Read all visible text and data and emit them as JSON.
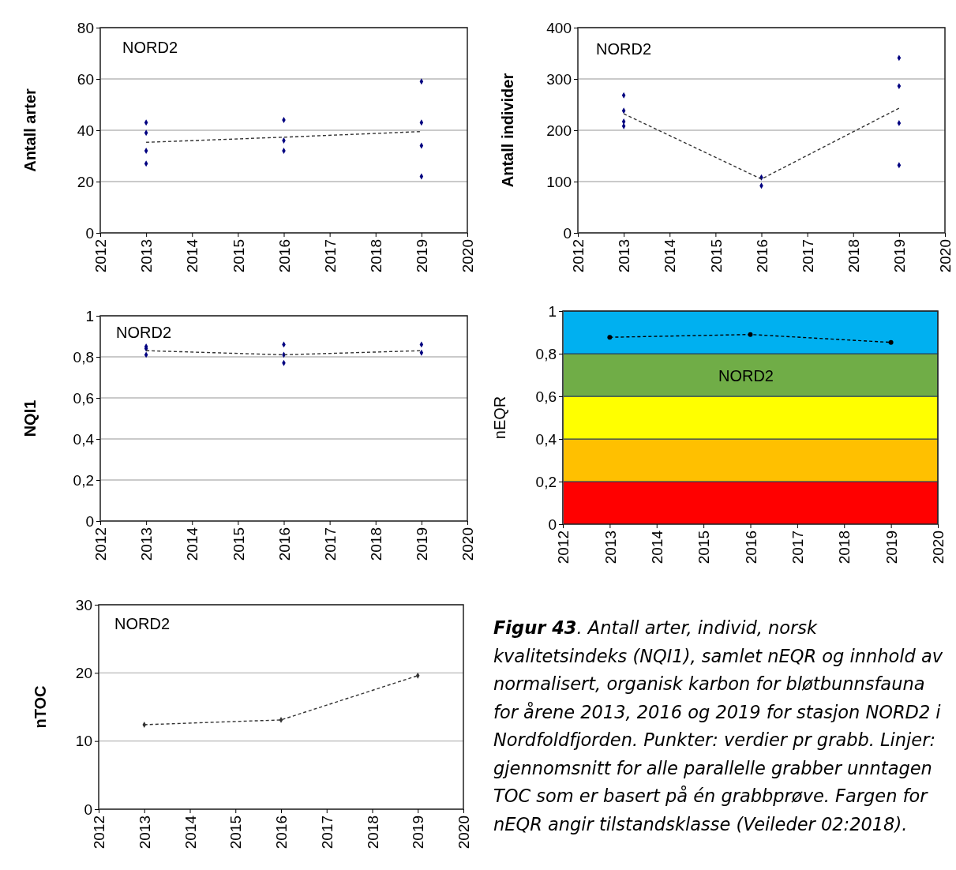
{
  "chart_data": [
    {
      "type": "scatter",
      "ylabel": "Antall arter",
      "xlim": [
        2012,
        2020
      ],
      "xticks": [
        2012,
        2013,
        2014,
        2015,
        2016,
        2017,
        2018,
        2019,
        2020
      ],
      "ylim": [
        0,
        80
      ],
      "yticks": [
        0,
        20,
        40,
        60,
        80
      ],
      "grid": "y",
      "annotations": [
        "NORD2"
      ],
      "series": [
        {
          "color": "#000080",
          "marker": "diamond",
          "x": [
            2013,
            2013,
            2013,
            2013,
            2016,
            2016,
            2016,
            2019,
            2019,
            2019,
            2019
          ],
          "values": [
            43,
            39,
            32,
            27,
            44,
            36,
            32,
            59,
            43,
            34,
            22
          ]
        },
        {
          "type": "line",
          "color": "#333333",
          "marker": "none",
          "line_style": "dashed",
          "x": [
            2013,
            2016,
            2019
          ],
          "values": [
            35.3,
            37.3,
            39.5
          ]
        }
      ]
    },
    {
      "type": "scatter",
      "ylabel": "Antall individer",
      "xlim": [
        2012,
        2020
      ],
      "xticks": [
        2012,
        2013,
        2014,
        2015,
        2016,
        2017,
        2018,
        2019,
        2020
      ],
      "ylim": [
        0,
        400
      ],
      "yticks": [
        0,
        100,
        200,
        300,
        400
      ],
      "grid": "y",
      "annotations": [
        "NORD2"
      ],
      "series": [
        {
          "color": "#000080",
          "marker": "diamond",
          "x": [
            2013,
            2013,
            2013,
            2013,
            2016,
            2016,
            2019,
            2019,
            2019,
            2019
          ],
          "values": [
            268,
            238,
            217,
            208,
            108,
            92,
            341,
            286,
            214,
            132
          ]
        },
        {
          "type": "line",
          "color": "#333333",
          "marker": "none",
          "line_style": "dashed",
          "x": [
            2013,
            2016,
            2019
          ],
          "values": [
            232,
            105,
            243
          ]
        }
      ]
    },
    {
      "type": "scatter",
      "ylabel": "NQI1",
      "xlim": [
        2012,
        2020
      ],
      "xticks": [
        2012,
        2013,
        2014,
        2015,
        2016,
        2017,
        2018,
        2019,
        2020
      ],
      "ylim": [
        0,
        1
      ],
      "yticks": [
        0,
        {
          "value": 0.2,
          "label": "0,2"
        },
        {
          "value": 0.4,
          "label": "0,4"
        },
        {
          "value": 0.6,
          "label": "0,6"
        },
        {
          "value": 0.8,
          "label": "0,8"
        },
        1
      ],
      "grid": "y",
      "annotations": [
        "NORD2"
      ],
      "series": [
        {
          "color": "#000080",
          "marker": "diamond",
          "x": [
            2013,
            2013,
            2013,
            2016,
            2016,
            2016,
            2019,
            2019
          ],
          "values": [
            0.85,
            0.84,
            0.81,
            0.86,
            0.81,
            0.77,
            0.86,
            0.82
          ]
        },
        {
          "type": "line",
          "color": "#333333",
          "marker": "none",
          "line_style": "dashed",
          "x": [
            2013,
            2016,
            2019
          ],
          "values": [
            0.83,
            0.81,
            0.83
          ]
        }
      ]
    },
    {
      "type": "line",
      "ylabel": "nEQR",
      "xlim": [
        2012,
        2020
      ],
      "xticks": [
        2012,
        2013,
        2014,
        2015,
        2016,
        2017,
        2018,
        2019,
        2020
      ],
      "ylim": [
        0,
        1
      ],
      "yticks": [
        0,
        {
          "value": 0.2,
          "label": "0,2"
        },
        {
          "value": 0.4,
          "label": "0,4"
        },
        {
          "value": 0.6,
          "label": "0,6"
        },
        {
          "value": 0.8,
          "label": "0,8"
        },
        1
      ],
      "annotations": [
        "NORD2"
      ],
      "bands": [
        {
          "axis": "y",
          "from": 0,
          "to": 0.2,
          "color": "#ff0000"
        },
        {
          "axis": "y",
          "from": 0.2,
          "to": 0.4,
          "color": "#ffc000"
        },
        {
          "axis": "y",
          "from": 0.4,
          "to": 0.6,
          "color": "#ffff00"
        },
        {
          "axis": "y",
          "from": 0.6,
          "to": 0.8,
          "color": "#70ad47"
        },
        {
          "axis": "y",
          "from": 0.8,
          "to": 1,
          "color": "#00b0f0"
        }
      ],
      "series": [
        {
          "color": "#000000",
          "marker": "circle",
          "line_style": "dashed",
          "x": [
            2013,
            2016,
            2019
          ],
          "values": [
            0.877,
            0.89,
            0.853
          ]
        }
      ]
    },
    {
      "type": "line",
      "ylabel": "nTOC",
      "xlim": [
        2012,
        2020
      ],
      "xticks": [
        2012,
        2013,
        2014,
        2015,
        2016,
        2017,
        2018,
        2019,
        2020
      ],
      "ylim": [
        0,
        30
      ],
      "yticks": [
        0,
        10,
        20,
        30
      ],
      "grid": "y",
      "annotations": [
        "NORD2",
        "Figur 43. Antall arter, individ, norsk kvalitetsindeks (NQI1), samlet nEQR og innhold av normalisert, organisk karbon for bløtbunnsfauna for årene 2013, 2016 og 2019 for stasjon NORD2 i Nordfoldfjorden. Punkter: verdier pr grabb. Linjer: gjennomsnitt for alle parallelle grabber unntagen TOC som er basert på én grabbprøve. Fargen for nEQR angir tilstandsklasse (Veileder 02:2018)."
      ],
      "series": [
        {
          "color": "#333333",
          "marker": "diamond",
          "line_style": "dashed",
          "x": [
            2013,
            2016,
            2019
          ],
          "values": [
            12.4,
            13.1,
            19.6
          ]
        }
      ]
    }
  ]
}
